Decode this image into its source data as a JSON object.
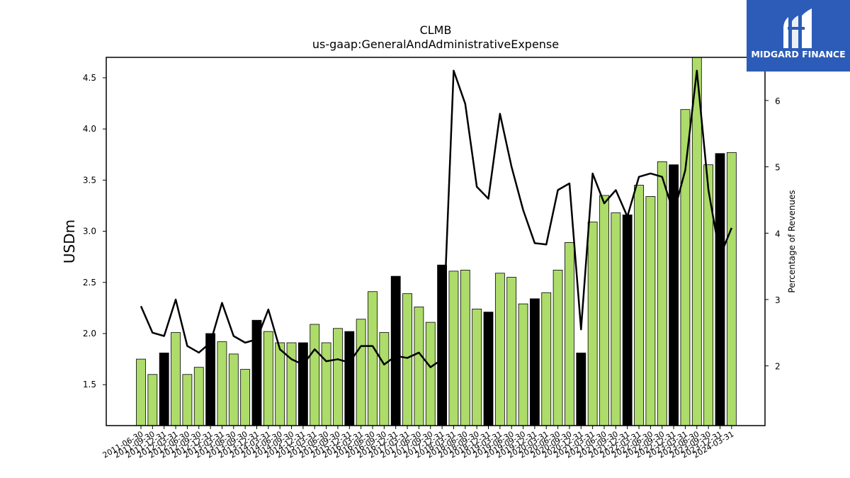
{
  "chart_data": {
    "type": "bar",
    "title": "CLMB",
    "subtitle": "us-gaap:GeneralAndAdministrativeExpense",
    "ylabel": "USDm",
    "y2label": "Percentage of Revenues",
    "ylim": [
      1.1,
      4.7
    ],
    "y2lim": [
      1.1,
      6.65
    ],
    "yticks": [
      "1.5",
      "2.0",
      "2.5",
      "3.0",
      "3.5",
      "4.0",
      "4.5"
    ],
    "y2ticks": [
      "2",
      "3",
      "4",
      "5",
      "6"
    ],
    "categories": [
      "2011-06-30",
      "2011-09-30",
      "2011-12-31",
      "2012-03-31",
      "2012-06-30",
      "2012-09-30",
      "2012-12-31",
      "2013-03-31",
      "2013-06-30",
      "2013-09-30",
      "2013-12-31",
      "2014-03-31",
      "2014-06-30",
      "2014-09-30",
      "2014-12-31",
      "2015-03-31",
      "2015-06-30",
      "2015-09-30",
      "2015-12-31",
      "2016-03-31",
      "2016-06-30",
      "2016-09-30",
      "2016-12-31",
      "2017-03-31",
      "2017-06-30",
      "2017-09-30",
      "2017-12-31",
      "2018-03-31",
      "2018-06-30",
      "2018-09-30",
      "2018-12-31",
      "2019-03-31",
      "2019-06-30",
      "2019-09-30",
      "2019-12-31",
      "2020-03-31",
      "2020-06-30",
      "2020-09-30",
      "2020-12-31",
      "2021-03-31",
      "2021-06-30",
      "2021-09-30",
      "2021-12-31",
      "2022-03-31",
      "2022-06-30",
      "2022-09-30",
      "2022-12-31",
      "2023-03-31",
      "2023-06-30",
      "2023-09-30",
      "2023-12-31",
      "2024-03-31"
    ],
    "xtick_labels": [
      "2011-06-30",
      "2011-09-30",
      "2011-12-31",
      "2012-03-31",
      "2012-06-30",
      "2012-09-30",
      "2012-12-31",
      "2013-03-31",
      "2013-06-30",
      "2013-09-30",
      "2013-12-31",
      "2014-03-31",
      "2014-06-30",
      "2014-09-30",
      "2014-12-31",
      "2015-03-31",
      "2015-06-30",
      "2015-09-30",
      "2015-12-31",
      "2016-03-31",
      "2016-06-30",
      "2016-09-30",
      "2016-12-31",
      "2017-03-31",
      "2017-06-30",
      "2017-09-30",
      "2017-12-31",
      "2018-03-31",
      "2018-06-30",
      "2018-09-30",
      "2018-12-31",
      "2019-03-31",
      "2019-06-30",
      "2019-09-30",
      "2019-12-31",
      "2020-03-31",
      "2020-06-30",
      "2020-09-30",
      "2020-12-31",
      "2021-03-31",
      "2021-06-30",
      "2021-09-30",
      "2021-12-31",
      "2022-03-31",
      "2022-06-30",
      "2022-09-30",
      "2022-12-31",
      "2023-03-31",
      "2023-06-30",
      "2023-09-30",
      "2023-12-31",
      "2024-03-31"
    ],
    "series": [
      {
        "type": "bar",
        "axis": "left",
        "values": [
          1.75,
          1.6,
          1.81,
          2.01,
          1.6,
          1.67,
          2.0,
          1.92,
          1.8,
          1.65,
          2.13,
          2.02,
          1.91,
          1.91,
          1.91,
          2.09,
          1.91,
          2.05,
          2.02,
          2.14,
          2.41,
          2.01,
          2.56,
          2.39,
          2.26,
          2.11,
          2.67,
          2.61,
          2.62,
          2.24,
          2.21,
          2.59,
          2.55,
          2.29,
          2.34,
          2.4,
          2.62,
          2.89,
          1.81,
          3.09,
          3.35,
          3.18,
          3.16,
          3.45,
          3.34,
          3.68,
          3.65,
          4.19,
          4.7,
          3.65,
          3.76,
          3.77
        ]
      },
      {
        "type": "line",
        "axis": "right",
        "values": [
          2.9,
          2.5,
          2.45,
          3.0,
          2.3,
          2.2,
          2.35,
          2.95,
          2.45,
          2.35,
          2.4,
          2.85,
          2.25,
          2.1,
          2.02,
          2.25,
          2.07,
          2.1,
          2.05,
          2.3,
          2.3,
          2.02,
          2.15,
          2.12,
          2.2,
          1.98,
          2.1,
          6.45,
          5.95,
          4.7,
          4.52,
          5.8,
          5.0,
          4.35,
          3.85,
          3.83,
          4.65,
          4.75,
          2.55,
          4.9,
          4.45,
          4.65,
          4.25,
          4.85,
          4.9,
          4.85,
          4.3,
          4.95,
          6.45,
          4.65,
          3.65,
          4.08
        ]
      }
    ],
    "bar_colors": {
      "default": "#addc6a",
      "quarter_end_fiscal": "#000000"
    },
    "dark_bar_indices": [
      2,
      6,
      10,
      14,
      18,
      22,
      26,
      30,
      34,
      38,
      42,
      46,
      50
    ],
    "line_color": "#000000",
    "grid": false,
    "legend": "none"
  },
  "logo": {
    "text": "MIDGARD FINANCE",
    "background": "#2c5cb8"
  }
}
